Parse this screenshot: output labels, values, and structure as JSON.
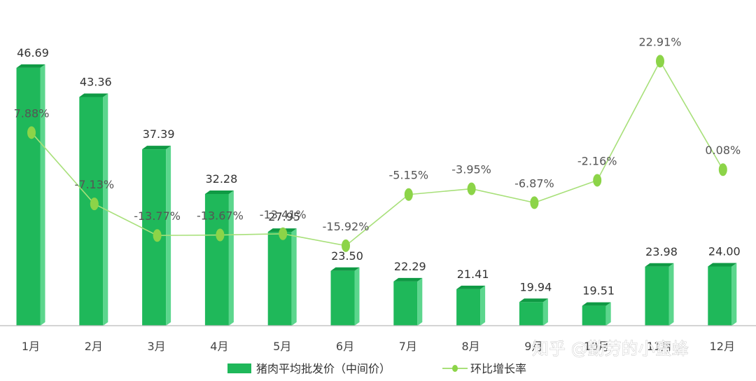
{
  "chart_data": {
    "type": "bar+line",
    "categories": [
      "1月",
      "2月",
      "3月",
      "4月",
      "5月",
      "6月",
      "7月",
      "8月",
      "9月",
      "10月",
      "11月",
      "12月"
    ],
    "series": [
      {
        "name": "猪肉平均批发价（中间价）",
        "type": "bar",
        "values": [
          46.69,
          43.36,
          37.39,
          32.28,
          27.95,
          23.5,
          22.29,
          21.41,
          19.94,
          19.51,
          23.98,
          24.0
        ],
        "labels": [
          "46.69",
          "43.36",
          "37.39",
          "32.28",
          "27.95",
          "23.50",
          "22.29",
          "21.41",
          "19.94",
          "19.51",
          "23.98",
          "24.00"
        ]
      },
      {
        "name": "环比增长率",
        "type": "line",
        "values": [
          7.88,
          -7.13,
          -13.77,
          -13.67,
          -13.41,
          -15.92,
          -5.15,
          -3.95,
          -6.87,
          -2.16,
          22.91,
          0.08
        ],
        "labels": [
          "7.88%",
          "-7.13%",
          "-13.77%",
          "-13.67%",
          "-13.41%",
          "-15.92%",
          "-5.15%",
          "-3.95%",
          "-6.87%",
          "-2.16%",
          "22.91%",
          "0.08%"
        ]
      }
    ],
    "bar_axis_range": [
      19,
      47
    ],
    "line_axis_range": [
      -27,
      29
    ],
    "grid": false,
    "legend_position": "bottom"
  },
  "colors": {
    "bar": "#1fb85a",
    "bar_side": "#5cd68d",
    "bar_top": "#0f9a44",
    "line": "#a8e07a",
    "marker": "#8cd448",
    "axis": "#bbbbbb"
  },
  "watermark": {
    "text": "知乎 @勤劳的小蜜蜂"
  }
}
